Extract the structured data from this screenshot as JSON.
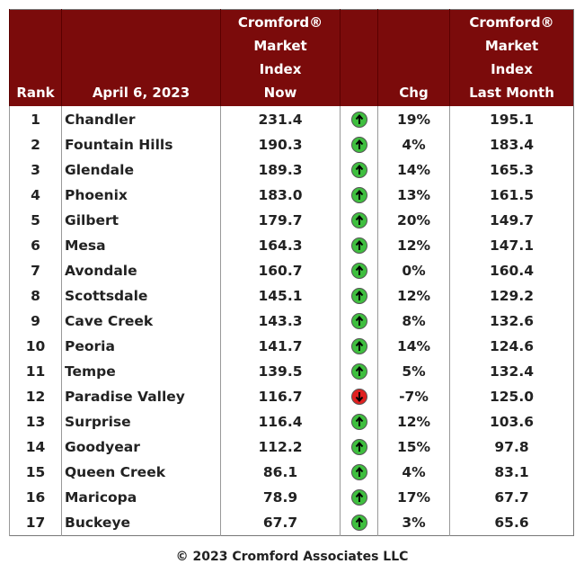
{
  "header": {
    "rank": [
      "Rank"
    ],
    "date": [
      "April 6, 2023"
    ],
    "index_now": [
      "Cromford®",
      "Market",
      "Index",
      "Now"
    ],
    "chg": [
      "Chg"
    ],
    "index_last": [
      "Cromford®",
      "Market",
      "Index",
      "Last Month"
    ]
  },
  "rows": [
    [
      "1",
      "Chandler",
      "231.4",
      "19%",
      "195.1"
    ],
    [
      "2",
      "Fountain Hills",
      "190.3",
      "4%",
      "183.4"
    ],
    [
      "3",
      "Glendale",
      "189.3",
      "14%",
      "165.3"
    ],
    [
      "4",
      "Phoenix",
      "183.0",
      "13%",
      "161.5"
    ],
    [
      "5",
      "Gilbert",
      "179.7",
      "20%",
      "149.7"
    ],
    [
      "6",
      "Mesa",
      "164.3",
      "12%",
      "147.1"
    ],
    [
      "7",
      "Avondale",
      "160.7",
      "0%",
      "160.4"
    ],
    [
      "8",
      "Scottsdale",
      "145.1",
      "12%",
      "129.2"
    ],
    [
      "9",
      "Cave Creek",
      "143.3",
      "8%",
      "132.6"
    ],
    [
      "10",
      "Peoria",
      "141.7",
      "14%",
      "124.6"
    ],
    [
      "11",
      "Tempe",
      "139.5",
      "5%",
      "132.4"
    ],
    [
      "12",
      "Paradise Valley",
      "116.7",
      "-7%",
      "125.0"
    ],
    [
      "13",
      "Surprise",
      "116.4",
      "12%",
      "103.6"
    ],
    [
      "14",
      "Goodyear",
      "112.2",
      "15%",
      "97.8"
    ],
    [
      "15",
      "Queen Creek",
      "86.1",
      "4%",
      "83.1"
    ],
    [
      "16",
      "Maricopa",
      "78.9",
      "17%",
      "67.7"
    ],
    [
      "17",
      "Buckeye",
      "67.7",
      "3%",
      "65.6"
    ]
  ],
  "footer": "© 2023 Cromford Associates LLC"
}
